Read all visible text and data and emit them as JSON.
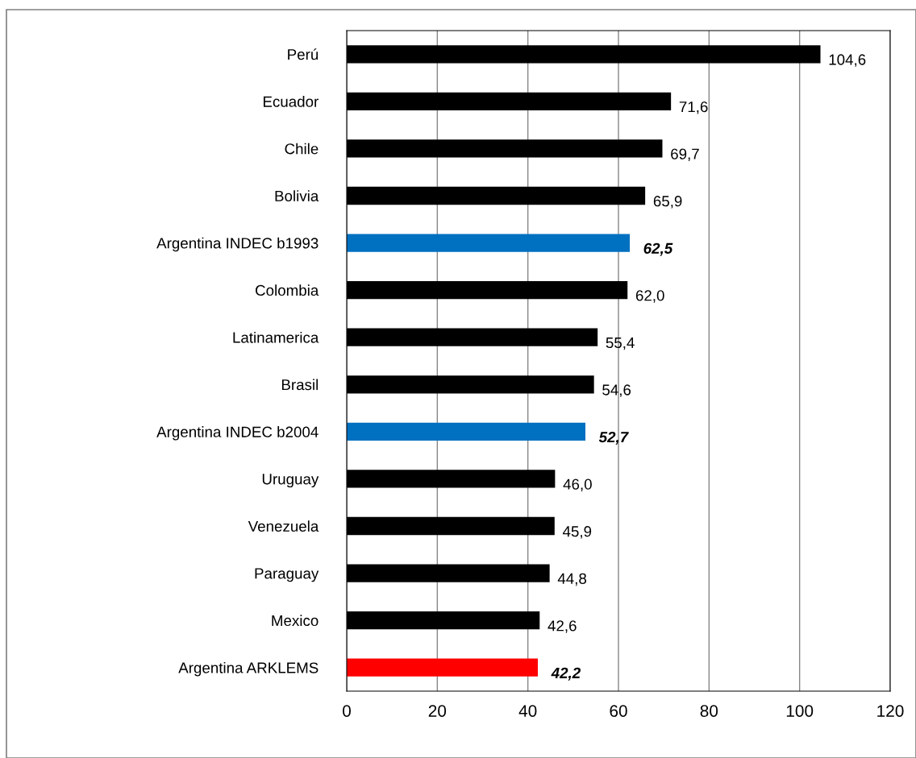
{
  "chart_data": {
    "type": "bar",
    "orientation": "horizontal",
    "categories": [
      "Perú",
      "Ecuador",
      "Chile",
      "Bolivia",
      "Argentina INDEC b1993",
      "Colombia",
      "Latinamerica",
      "Brasil",
      "Argentina INDEC b2004",
      "Uruguay",
      "Venezuela",
      "Paraguay",
      "Mexico",
      "Argentina ARKLEMS"
    ],
    "values": [
      104.6,
      71.6,
      69.7,
      65.9,
      62.5,
      62.0,
      55.4,
      54.6,
      52.7,
      46.0,
      45.9,
      44.8,
      42.6,
      42.2
    ],
    "colors": [
      "#000000",
      "#000000",
      "#000000",
      "#000000",
      "#0070c0",
      "#000000",
      "#000000",
      "#000000",
      "#0070c0",
      "#000000",
      "#000000",
      "#000000",
      "#000000",
      "#ff0000"
    ],
    "value_labels": [
      "104,6",
      "71,6",
      "69,7",
      "65,9",
      "62,5",
      "62,0",
      "55,4",
      "54,6",
      "52,7",
      "46,0",
      "45,9",
      "44,8",
      "42,6",
      "42,2"
    ],
    "xlim": [
      0,
      120
    ],
    "xticks": [
      0,
      20,
      40,
      60,
      80,
      100,
      120
    ],
    "grid": "x"
  }
}
